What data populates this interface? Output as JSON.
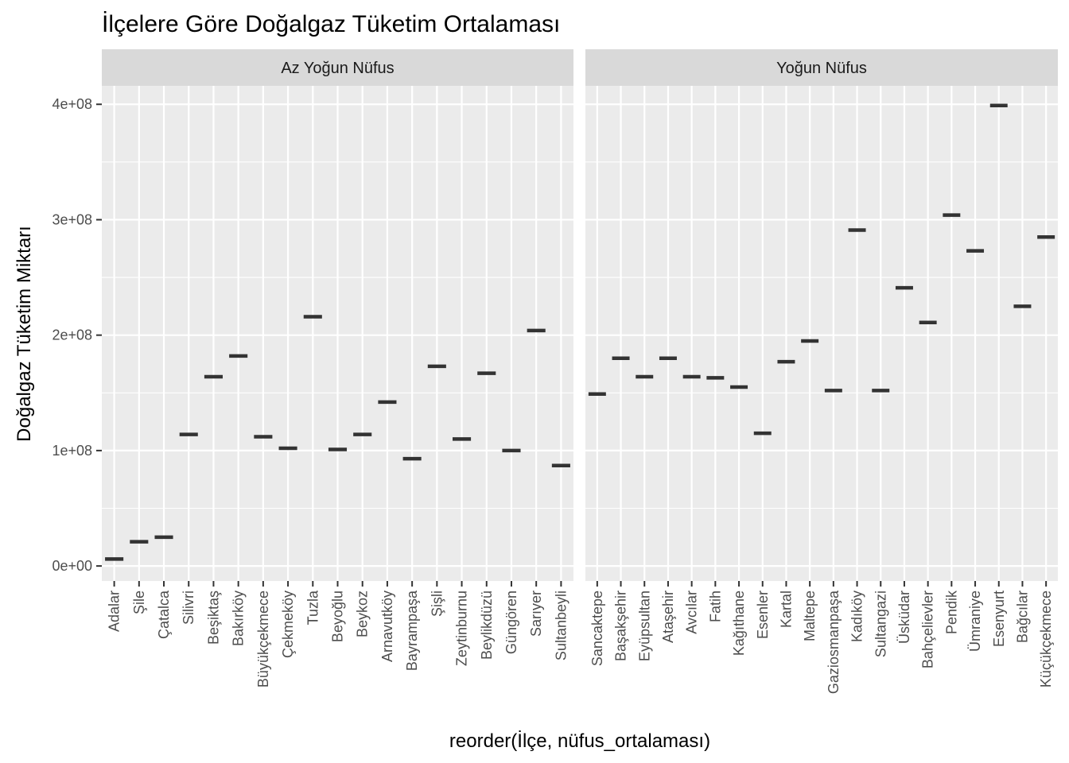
{
  "chart_data": {
    "type": "boxplot",
    "title": "İlçelere Göre Doğalgaz Tüketim Ortalaması",
    "xlabel": "reorder(İlçe, nüfus_ortalaması)",
    "ylabel": "Doğalgaz Tüketim Miktarı",
    "ylim": [
      -13000000,
      416000000
    ],
    "yticks": [
      0,
      100000000,
      200000000,
      300000000,
      400000000
    ],
    "ytick_labels": [
      "0e+00",
      "1e+08",
      "2e+08",
      "3e+08",
      "4e+08"
    ],
    "grid": true,
    "facets": [
      {
        "name": "Az Yoğun Nüfus",
        "categories": [
          "Adalar",
          "Şile",
          "Çatalca",
          "Silivri",
          "Beşiktaş",
          "Bakırköy",
          "Büyükçekmece",
          "Çekmeköy",
          "Tuzla",
          "Beyoğlu",
          "Beykoz",
          "Arnavutköy",
          "Bayrampaşa",
          "Şişli",
          "Zeytinburnu",
          "Beylikdüzü",
          "Güngören",
          "Sarıyer",
          "Sultanbeyli"
        ],
        "values": [
          6000000,
          21000000,
          25000000,
          114000000,
          164000000,
          182000000,
          112000000,
          102000000,
          216000000,
          101000000,
          114000000,
          142000000,
          93000000,
          173000000,
          110000000,
          167000000,
          100000000,
          204000000,
          87000000
        ]
      },
      {
        "name": "Yoğun Nüfus",
        "categories": [
          "Sancaktepe",
          "Başakşehir",
          "Eyüpsultan",
          "Ataşehir",
          "Avcılar",
          "Fatih",
          "Kağıthane",
          "Esenler",
          "Kartal",
          "Maltepe",
          "Gaziosmanpaşa",
          "Kadıköy",
          "Sultangazi",
          "Üsküdar",
          "Bahçelievler",
          "Pendik",
          "Ümraniye",
          "Esenyurt",
          "Bağcılar",
          "Küçükçekmece"
        ],
        "values": [
          149000000,
          180000000,
          164000000,
          180000000,
          164000000,
          163000000,
          155000000,
          115000000,
          177000000,
          195000000,
          152000000,
          291000000,
          152000000,
          241000000,
          211000000,
          304000000,
          273000000,
          399000000,
          225000000,
          285000000
        ]
      }
    ],
    "colors": {
      "panel_background": "#ebebeb",
      "strip_background": "#d9d9d9",
      "grid": "#ffffff",
      "mark": "#333333"
    }
  }
}
